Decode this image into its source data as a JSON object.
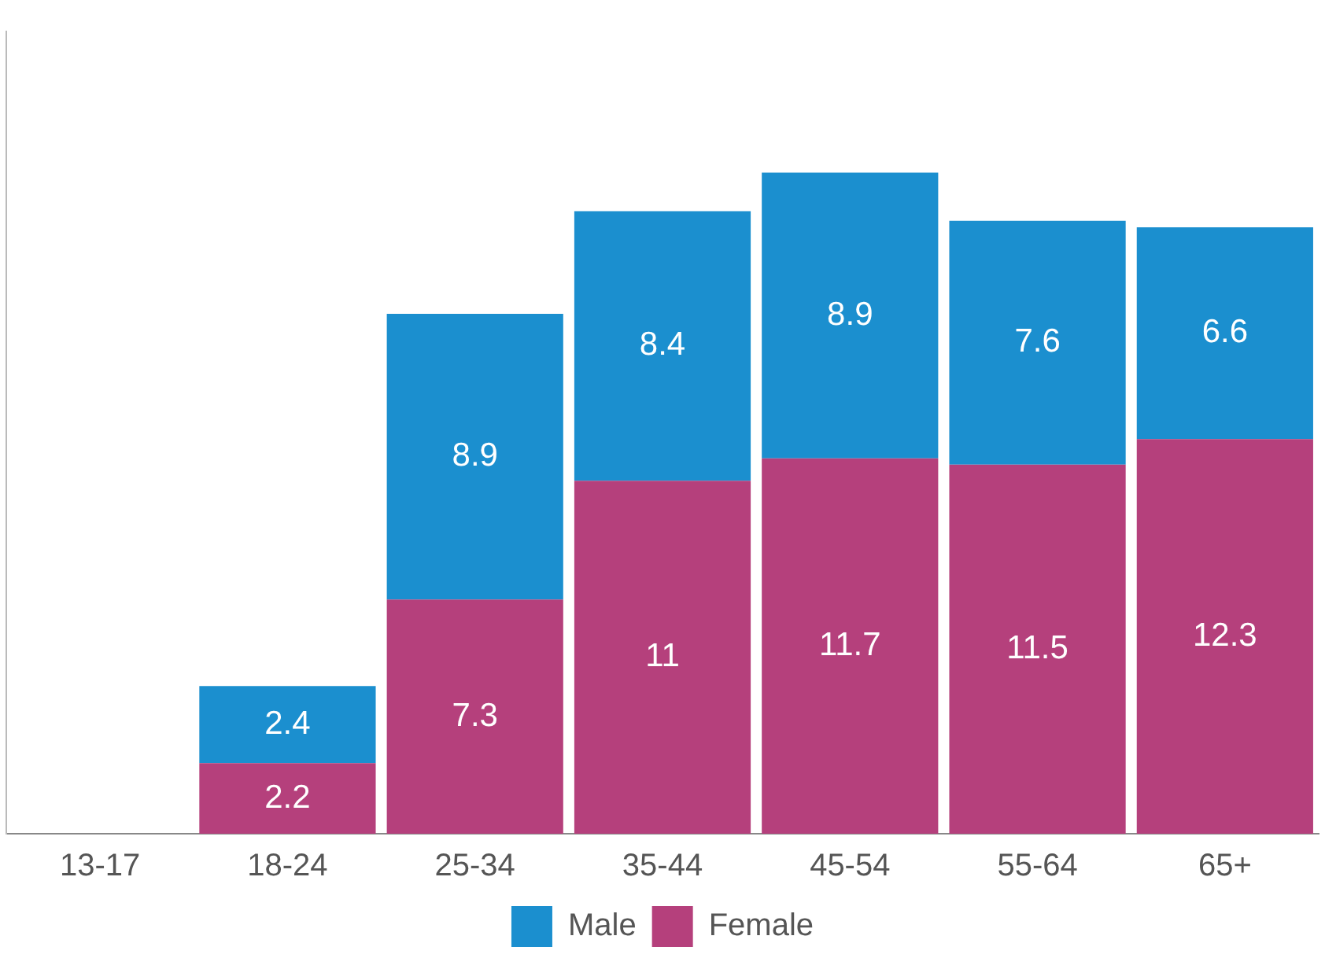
{
  "chart_data": {
    "type": "bar",
    "stacked": true,
    "categories": [
      "13-17",
      "18-24",
      "25-34",
      "35-44",
      "45-54",
      "55-64",
      "65+"
    ],
    "series": [
      {
        "name": "Female",
        "color": "#b5407c",
        "values": [
          null,
          2.2,
          7.3,
          11,
          11.7,
          11.5,
          12.3
        ]
      },
      {
        "name": "Male",
        "color": "#1b8fcf",
        "values": [
          null,
          2.4,
          8.9,
          8.4,
          8.9,
          7.6,
          6.6
        ]
      }
    ],
    "data_labels": true,
    "legend": "bottom",
    "grid": false
  }
}
